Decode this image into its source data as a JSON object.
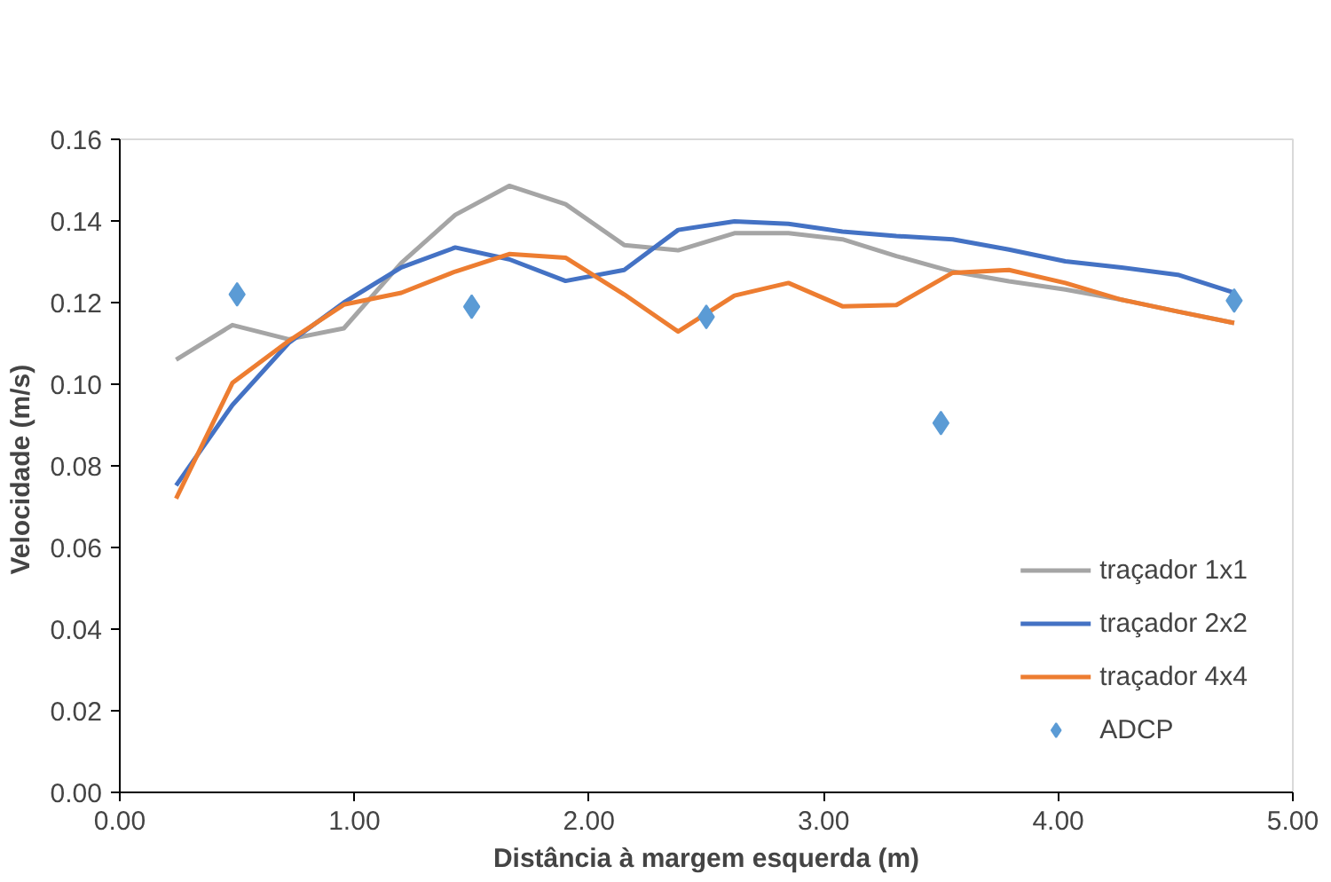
{
  "chart_data": {
    "type": "line",
    "xlabel": "Distância à margem esquerda (m)",
    "ylabel": "Velocidade  (m/s)",
    "xlim": [
      0,
      5
    ],
    "ylim": [
      0,
      0.16
    ],
    "xticks": [
      {
        "value": 0,
        "label": "0.00"
      },
      {
        "value": 1,
        "label": "1.00"
      },
      {
        "value": 2,
        "label": "2.00"
      },
      {
        "value": 3,
        "label": "3.00"
      },
      {
        "value": 4,
        "label": "4.00"
      },
      {
        "value": 5,
        "label": "5.00"
      }
    ],
    "yticks": [
      {
        "value": 0,
        "label": "0.00"
      },
      {
        "value": 0.02,
        "label": "0.02"
      },
      {
        "value": 0.04,
        "label": "0.04"
      },
      {
        "value": 0.06,
        "label": "0.06"
      },
      {
        "value": 0.08,
        "label": "0.08"
      },
      {
        "value": 0.1,
        "label": "0.10"
      },
      {
        "value": 0.12,
        "label": "0.12"
      },
      {
        "value": 0.14,
        "label": "0.14"
      },
      {
        "value": 0.16,
        "label": "0.16"
      }
    ],
    "grid": false,
    "legend": "bottom right",
    "series": [
      {
        "name": "traçador 1x1",
        "color": "#a5a5a5",
        "x": [
          0.24,
          0.48,
          0.72,
          0.955,
          1.2,
          1.43,
          1.66,
          1.9,
          2.15,
          2.38,
          2.62,
          2.85,
          3.08,
          3.31,
          3.55,
          3.79,
          4.03,
          4.27,
          4.51,
          4.75
        ],
        "values": [
          0.106,
          0.1145,
          0.111,
          0.1137,
          0.1297,
          0.1415,
          0.1486,
          0.1441,
          0.1341,
          0.1328,
          0.137,
          0.137,
          0.1355,
          0.1314,
          0.1276,
          0.1252,
          0.1232,
          0.1207,
          0.1178,
          0.115
        ]
      },
      {
        "name": "traçador 2x2",
        "color": "#4472c4",
        "x": [
          0.24,
          0.48,
          0.72,
          0.955,
          1.2,
          1.43,
          1.66,
          1.9,
          2.15,
          2.38,
          2.62,
          2.85,
          3.08,
          3.31,
          3.55,
          3.79,
          4.03,
          4.27,
          4.51,
          4.75
        ],
        "values": [
          0.0752,
          0.0949,
          0.1101,
          0.12,
          0.1286,
          0.1335,
          0.1306,
          0.1253,
          0.128,
          0.1378,
          0.1399,
          0.1393,
          0.1374,
          0.1363,
          0.1355,
          0.133,
          0.1301,
          0.1286,
          0.1268,
          0.1224
        ]
      },
      {
        "name": "traçador 4x4",
        "color": "#ed7d31",
        "x": [
          0.24,
          0.48,
          0.72,
          0.955,
          1.2,
          1.43,
          1.66,
          1.9,
          2.15,
          2.38,
          2.62,
          2.85,
          3.08,
          3.31,
          3.55,
          3.79,
          4.03,
          4.27,
          4.51,
          4.75
        ],
        "values": [
          0.072,
          0.1003,
          0.1106,
          0.1195,
          0.1224,
          0.1276,
          0.1319,
          0.131,
          0.122,
          0.1129,
          0.1217,
          0.1248,
          0.1191,
          0.1194,
          0.1273,
          0.128,
          0.1248,
          0.1207,
          0.1178,
          0.115
        ]
      },
      {
        "name": "ADCP",
        "type": "scatter",
        "marker": "diamond",
        "color": "#5b9bd5",
        "x": [
          0.5,
          1.5,
          2.5,
          3.5,
          4.75
        ],
        "values": [
          0.122,
          0.119,
          0.1165,
          0.0905,
          0.1205
        ]
      }
    ]
  }
}
